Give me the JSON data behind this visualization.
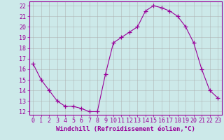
{
  "x": [
    0,
    1,
    2,
    3,
    4,
    5,
    6,
    7,
    8,
    9,
    10,
    11,
    12,
    13,
    14,
    15,
    16,
    17,
    18,
    19,
    20,
    21,
    22,
    23
  ],
  "y": [
    16.5,
    15.0,
    14.0,
    13.0,
    12.5,
    12.5,
    12.3,
    12.0,
    12.0,
    15.5,
    18.5,
    19.0,
    19.5,
    20.0,
    21.5,
    22.0,
    21.8,
    21.5,
    21.0,
    20.0,
    18.5,
    16.0,
    14.0,
    13.3
  ],
  "line_color": "#990099",
  "marker": "+",
  "marker_size": 4,
  "background_color": "#cce9e9",
  "grid_color": "#aaaaaa",
  "xlabel": "Windchill (Refroidissement éolien,°C)",
  "xlabel_fontsize": 6.5,
  "tick_fontsize": 6.0,
  "ylim": [
    11.7,
    22.4
  ],
  "xlim": [
    -0.5,
    23.5
  ],
  "yticks": [
    12,
    13,
    14,
    15,
    16,
    17,
    18,
    19,
    20,
    21,
    22
  ],
  "xticks": [
    0,
    1,
    2,
    3,
    4,
    5,
    6,
    7,
    8,
    9,
    10,
    11,
    12,
    13,
    14,
    15,
    16,
    17,
    18,
    19,
    20,
    21,
    22,
    23
  ]
}
